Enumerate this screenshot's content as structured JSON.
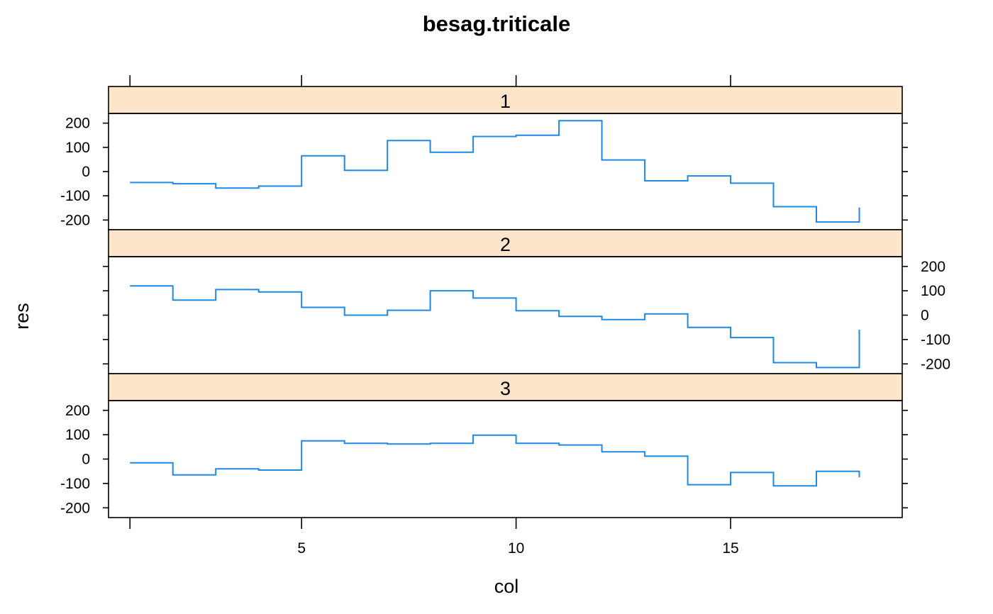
{
  "chart_data": {
    "type": "line",
    "plot_style": "step",
    "title": "besag.triticale",
    "xlabel": "col",
    "ylabel": "res",
    "xlim": [
      0.5,
      19
    ],
    "ylim": [
      -240,
      240
    ],
    "x_ticks": [
      5,
      10,
      15
    ],
    "x_tick_labels": [
      "5",
      "10",
      "15"
    ],
    "y_ticks": [
      -200,
      -100,
      0,
      100,
      200
    ],
    "y_tick_labels": [
      "-200",
      "-100",
      "0",
      "100",
      "200"
    ],
    "grid": false,
    "line_color": "#1e88e5",
    "strip_color": "#fde5cc",
    "x": [
      1,
      2,
      3,
      4,
      5,
      6,
      7,
      8,
      9,
      10,
      11,
      12,
      13,
      14,
      15,
      16,
      17,
      18
    ],
    "panels": [
      {
        "label": "1",
        "values": [
          -45,
          -50,
          -68,
          -60,
          65,
          5,
          128,
          80,
          145,
          150,
          210,
          48,
          -38,
          -18,
          -48,
          -145,
          -208,
          -148
        ]
      },
      {
        "label": "2",
        "values": [
          120,
          62,
          105,
          95,
          32,
          0,
          20,
          100,
          70,
          18,
          -5,
          -18,
          5,
          -50,
          -92,
          -195,
          -215,
          -60
        ]
      },
      {
        "label": "3",
        "values": [
          -15,
          -65,
          -40,
          -45,
          75,
          65,
          62,
          65,
          98,
          65,
          58,
          30,
          12,
          -105,
          -55,
          -110,
          -50,
          -75
        ]
      }
    ]
  }
}
